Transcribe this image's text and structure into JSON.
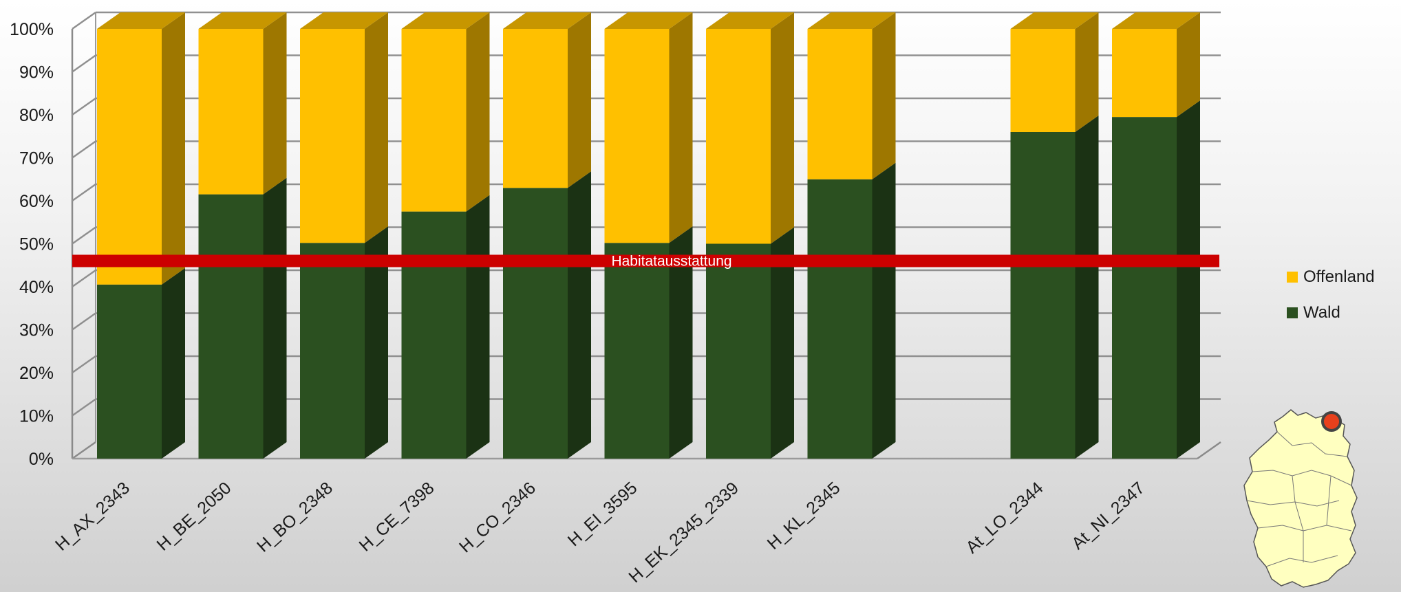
{
  "chart_data": {
    "type": "bar",
    "stacked": true,
    "percent": true,
    "categories": [
      "H_AX_2343",
      "H_BE_2050",
      "H_BO_2348",
      "H_CE_7398",
      "H_CO_2346",
      "H_EI_3595",
      "H_EK_2345_2339",
      "H_KL_2345",
      "",
      "At_LO_2344",
      "At_NI_2347"
    ],
    "series": [
      {
        "name": "Wald",
        "color": "#2b5020",
        "values": [
          40.5,
          61.5,
          50.2,
          57.5,
          63,
          50.2,
          50,
          65,
          null,
          76,
          79.5
        ]
      },
      {
        "name": "Offenland",
        "color": "#ffc000",
        "values": [
          59.5,
          38.5,
          49.8,
          42.5,
          37,
          49.8,
          50,
          35,
          null,
          24,
          20.5
        ]
      }
    ],
    "ylim": [
      0,
      100
    ],
    "yticks": [
      "0%",
      "10%",
      "20%",
      "30%",
      "40%",
      "50%",
      "60%",
      "70%",
      "80%",
      "90%",
      "100%"
    ],
    "grid": true,
    "legend": "right",
    "reference_line": {
      "value": 46,
      "label": "Habitatausstattung",
      "color": "#cc0000"
    }
  }
}
